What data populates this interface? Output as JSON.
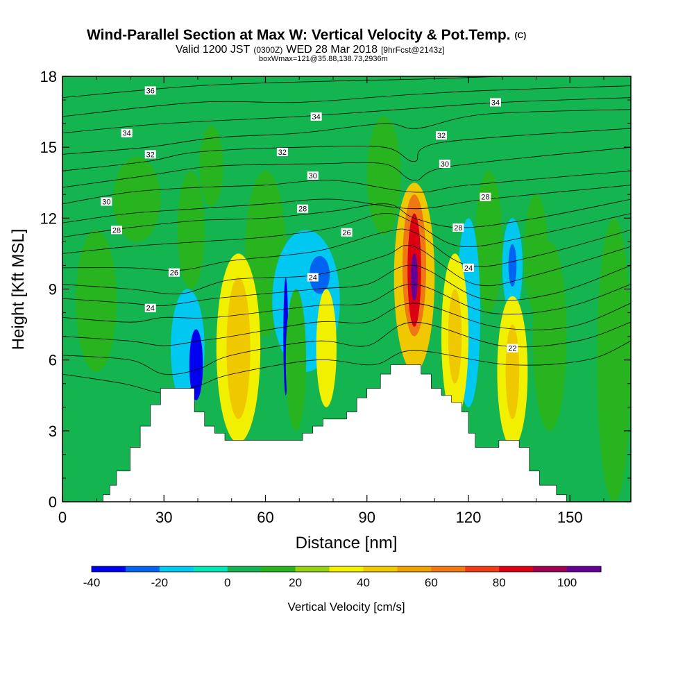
{
  "title": {
    "main": "Wind-Parallel Section at Max W: Vertical Velocity & Pot.Temp.",
    "copyright": "(C)",
    "valid_prefix": "Valid 1200 JST",
    "valid_utc": "(0300Z)",
    "valid_date": "WED 28 Mar 2018",
    "forecast": "[9hrFcst@2143z]",
    "boxwmax": "boxWmax=121@35.88,138.73,2936m"
  },
  "chart_data": {
    "type": "heatmap",
    "xlabel": "Distance [nm]",
    "ylabel": "Height [Kft MSL]",
    "xlim": [
      0,
      168
    ],
    "ylim": [
      0,
      18
    ],
    "x_ticks": [
      0,
      30,
      60,
      90,
      120,
      150
    ],
    "y_ticks": [
      0,
      3,
      6,
      9,
      12,
      15,
      18
    ],
    "grid": false,
    "background_value": 0,
    "colorbar": {
      "title": "Vertical Velocity [cm/s]",
      "placement": "bottom",
      "tick_labels": [
        "-40",
        "-20",
        "0",
        "20",
        "40",
        "60",
        "80",
        "100"
      ],
      "levels": [
        -40,
        -30,
        -20,
        -10,
        0,
        10,
        20,
        30,
        40,
        50,
        60,
        70,
        80,
        90,
        100,
        110
      ],
      "colors": [
        "#0000f0",
        "#0064f0",
        "#00c8f0",
        "#00e6b4",
        "#14b450",
        "#28b41e",
        "#96d214",
        "#f0f000",
        "#f0c800",
        "#f0a000",
        "#f07814",
        "#f03c14",
        "#dc0014",
        "#a00050",
        "#640096"
      ]
    },
    "terrain_kft": [
      [
        0,
        0
      ],
      [
        12,
        0
      ],
      [
        12,
        0.3
      ],
      [
        14,
        0.3
      ],
      [
        14,
        0.7
      ],
      [
        16,
        0.7
      ],
      [
        16,
        1.3
      ],
      [
        20,
        1.3
      ],
      [
        20,
        2.3
      ],
      [
        23,
        2.3
      ],
      [
        23,
        3.2
      ],
      [
        26,
        3.2
      ],
      [
        26,
        4.1
      ],
      [
        29,
        4.1
      ],
      [
        29,
        4.8
      ],
      [
        39,
        4.8
      ],
      [
        39,
        3.8
      ],
      [
        42,
        3.8
      ],
      [
        42,
        3.2
      ],
      [
        45,
        3.2
      ],
      [
        45,
        2.9
      ],
      [
        48,
        2.9
      ],
      [
        48,
        2.6
      ],
      [
        71,
        2.6
      ],
      [
        71,
        2.9
      ],
      [
        74,
        2.9
      ],
      [
        74,
        3.2
      ],
      [
        77,
        3.2
      ],
      [
        77,
        3.5
      ],
      [
        84,
        3.5
      ],
      [
        84,
        3.8
      ],
      [
        87,
        3.8
      ],
      [
        87,
        4.4
      ],
      [
        90,
        4.4
      ],
      [
        90,
        4.8
      ],
      [
        94,
        4.8
      ],
      [
        94,
        5.4
      ],
      [
        97,
        5.4
      ],
      [
        97,
        5.8
      ],
      [
        106,
        5.8
      ],
      [
        106,
        5.4
      ],
      [
        109,
        5.4
      ],
      [
        109,
        4.8
      ],
      [
        112,
        4.8
      ],
      [
        112,
        4.5
      ],
      [
        115,
        4.5
      ],
      [
        115,
        4.2
      ],
      [
        118,
        4.2
      ],
      [
        118,
        3.8
      ],
      [
        120,
        3.8
      ],
      [
        120,
        2.9
      ],
      [
        122,
        2.9
      ],
      [
        122,
        2.3
      ],
      [
        129,
        2.3
      ],
      [
        129,
        2.6
      ],
      [
        135,
        2.6
      ],
      [
        135,
        2.3
      ],
      [
        138,
        2.3
      ],
      [
        138,
        1.3
      ],
      [
        141,
        1.3
      ],
      [
        141,
        0.7
      ],
      [
        146,
        0.7
      ],
      [
        146,
        0.3
      ],
      [
        149,
        0.3
      ],
      [
        149,
        0
      ],
      [
        168,
        0
      ]
    ],
    "cells": [
      {
        "x": 10,
        "y": 8.5,
        "rx": 6,
        "ry": 3,
        "w": 10
      },
      {
        "x": 22,
        "y": 12.8,
        "rx": 7,
        "ry": 1.8,
        "w": 10
      },
      {
        "x": 38,
        "y": 11.5,
        "rx": 4,
        "ry": 2.5,
        "w": 10
      },
      {
        "x": 44,
        "y": 14.2,
        "rx": 3.5,
        "ry": 1.7,
        "w": 10
      },
      {
        "x": 60,
        "y": 10.5,
        "rx": 6,
        "ry": 3.5,
        "w": 10
      },
      {
        "x": 95,
        "y": 13.8,
        "rx": 5,
        "ry": 2.5,
        "w": 10
      },
      {
        "x": 126,
        "y": 11,
        "rx": 4,
        "ry": 3,
        "w": 10
      },
      {
        "x": 140,
        "y": 10.5,
        "rx": 3.5,
        "ry": 2.5,
        "w": 10
      },
      {
        "x": 144,
        "y": 7,
        "rx": 5,
        "ry": 4,
        "w": 10
      },
      {
        "x": 163,
        "y": 6,
        "rx": 5,
        "ry": 6,
        "w": 10
      },
      {
        "x": 37,
        "y": 6.5,
        "rx": 5,
        "ry": 2.5,
        "w": -20
      },
      {
        "x": 39.5,
        "y": 5.8,
        "rx": 2,
        "ry": 1.5,
        "w": -35
      },
      {
        "x": 72,
        "y": 8.5,
        "rx": 10,
        "ry": 3,
        "w": -15
      },
      {
        "x": 76,
        "y": 9.6,
        "rx": 3,
        "ry": 0.8,
        "w": -25
      },
      {
        "x": 66,
        "y": 7,
        "rx": 0.7,
        "ry": 2.5,
        "w": -35
      },
      {
        "x": 120,
        "y": 8,
        "rx": 3.5,
        "ry": 4,
        "w": -15
      },
      {
        "x": 133,
        "y": 10,
        "rx": 3,
        "ry": 2,
        "w": -15
      },
      {
        "x": 133,
        "y": 10,
        "rx": 1.2,
        "ry": 0.9,
        "w": -30
      },
      {
        "x": 52,
        "y": 6.5,
        "rx": 6.5,
        "ry": 4,
        "w": 30
      },
      {
        "x": 52,
        "y": 6.5,
        "rx": 3.5,
        "ry": 3,
        "w": 45
      },
      {
        "x": 69,
        "y": 6,
        "rx": 3,
        "ry": 3,
        "w": 15
      },
      {
        "x": 78,
        "y": 6.5,
        "rx": 3,
        "ry": 2.5,
        "w": 30
      },
      {
        "x": 104,
        "y": 9.5,
        "rx": 6,
        "ry": 4,
        "w": 40
      },
      {
        "x": 104,
        "y": 10,
        "rx": 3.5,
        "ry": 3,
        "w": 60
      },
      {
        "x": 104,
        "y": 9.8,
        "rx": 2,
        "ry": 2.4,
        "w": 85
      },
      {
        "x": 104,
        "y": 9.5,
        "rx": 1,
        "ry": 1,
        "w": 105
      },
      {
        "x": 116,
        "y": 7,
        "rx": 4,
        "ry": 3.5,
        "w": 30
      },
      {
        "x": 116,
        "y": 7,
        "rx": 2,
        "ry": 2,
        "w": 45
      },
      {
        "x": 133,
        "y": 5.5,
        "rx": 4.5,
        "ry": 3.2,
        "w": 30
      },
      {
        "x": 133,
        "y": 5.5,
        "rx": 2,
        "ry": 2,
        "w": 45
      }
    ],
    "isentropes": [
      {
        "label": "36",
        "points": [
          [
            0,
            17.1
          ],
          [
            40,
            17.6
          ],
          [
            80,
            17.8
          ],
          [
            110,
            17.9
          ],
          [
            168,
            18.2
          ]
        ]
      },
      {
        "label": "34",
        "points": [
          [
            0,
            16.3
          ],
          [
            40,
            16.9
          ],
          [
            70,
            16.9
          ],
          [
            100,
            17.2
          ],
          [
            125,
            17.4
          ],
          [
            168,
            17.6
          ]
        ]
      },
      {
        "label": "34",
        "points": [
          [
            0,
            15.6
          ],
          [
            30,
            16
          ],
          [
            70,
            16.3
          ],
          [
            100,
            16.6
          ],
          [
            130,
            16.9
          ],
          [
            168,
            17.1
          ]
        ]
      },
      {
        "label": "32",
        "points": [
          [
            0,
            14.7
          ],
          [
            25,
            15
          ],
          [
            45,
            15.4
          ],
          [
            70,
            15.6
          ],
          [
            95,
            16
          ],
          [
            105,
            15.8
          ],
          [
            125,
            16.4
          ],
          [
            168,
            16.6
          ]
        ]
      },
      {
        "label": "32",
        "points": [
          [
            0,
            14
          ],
          [
            25,
            14.4
          ],
          [
            40,
            14.8
          ],
          [
            70,
            15
          ],
          [
            95,
            15
          ],
          [
            104,
            14.4
          ],
          [
            112,
            15.2
          ],
          [
            168,
            15.8
          ]
        ]
      },
      {
        "label": "30",
        "points": [
          [
            0,
            13.3
          ],
          [
            25,
            13.8
          ],
          [
            45,
            14.2
          ],
          [
            75,
            14.3
          ],
          [
            95,
            14.3
          ],
          [
            104,
            13.6
          ],
          [
            115,
            14.2
          ],
          [
            168,
            15
          ]
        ]
      },
      {
        "label": "30",
        "points": [
          [
            0,
            12.6
          ],
          [
            20,
            13.1
          ],
          [
            40,
            13.3
          ],
          [
            60,
            13.4
          ],
          [
            80,
            13.6
          ],
          [
            104,
            13.1
          ],
          [
            120,
            13.4
          ],
          [
            168,
            14
          ]
        ]
      },
      {
        "label": "28",
        "points": [
          [
            0,
            11.8
          ],
          [
            20,
            12.2
          ],
          [
            40,
            12.4
          ],
          [
            60,
            12.6
          ],
          [
            80,
            12.8
          ],
          [
            104,
            12.4
          ],
          [
            125,
            12.8
          ],
          [
            168,
            13.4
          ]
        ]
      },
      {
        "label": "28",
        "points": [
          [
            0,
            11.2
          ],
          [
            20,
            11.6
          ],
          [
            40,
            11.9
          ],
          [
            60,
            12
          ],
          [
            80,
            12.3
          ],
          [
            96,
            12.6
          ],
          [
            104,
            12
          ],
          [
            118,
            11.6
          ],
          [
            140,
            12
          ],
          [
            168,
            12.8
          ]
        ]
      },
      {
        "label": "26",
        "points": [
          [
            0,
            10.5
          ],
          [
            20,
            10.8
          ],
          [
            40,
            11
          ],
          [
            60,
            11.2
          ],
          [
            80,
            11.6
          ],
          [
            95,
            12.2
          ],
          [
            104,
            11.8
          ],
          [
            118,
            10.8
          ],
          [
            140,
            11.3
          ],
          [
            168,
            12.2
          ]
        ]
      },
      {
        "label": "26",
        "points": [
          [
            0,
            9.9
          ],
          [
            20,
            9.9
          ],
          [
            35,
            9.8
          ],
          [
            50,
            10.2
          ],
          [
            75,
            10.6
          ],
          [
            95,
            11.4
          ],
          [
            104,
            11.4
          ],
          [
            120,
            10
          ],
          [
            140,
            10.4
          ],
          [
            168,
            11.5
          ]
        ]
      },
      {
        "label": "24",
        "points": [
          [
            0,
            9.2
          ],
          [
            20,
            9
          ],
          [
            35,
            8.8
          ],
          [
            50,
            9.4
          ],
          [
            75,
            9.6
          ],
          [
            95,
            10.4
          ],
          [
            104,
            10.8
          ],
          [
            122,
            9.2
          ],
          [
            140,
            9.6
          ],
          [
            168,
            10.8
          ]
        ]
      },
      {
        "label": "24",
        "points": [
          [
            0,
            8.6
          ],
          [
            20,
            8.4
          ],
          [
            30,
            8.3
          ],
          [
            45,
            8.6
          ],
          [
            75,
            9
          ],
          [
            90,
            9.2
          ],
          [
            104,
            10
          ],
          [
            124,
            8.6
          ],
          [
            145,
            8.8
          ],
          [
            168,
            10
          ]
        ]
      },
      {
        "label": "22",
        "points": [
          [
            0,
            7.8
          ],
          [
            20,
            7.6
          ],
          [
            30,
            7.8
          ],
          [
            45,
            7.8
          ],
          [
            75,
            8.3
          ],
          [
            90,
            8.4
          ],
          [
            104,
            9.2
          ],
          [
            126,
            8
          ],
          [
            148,
            8.2
          ],
          [
            168,
            9.2
          ]
        ]
      },
      {
        "label": "22",
        "points": [
          [
            0,
            7
          ],
          [
            20,
            6.8
          ],
          [
            30,
            6.6
          ],
          [
            40,
            6.8
          ],
          [
            50,
            7
          ],
          [
            75,
            7.6
          ],
          [
            90,
            7.6
          ],
          [
            104,
            8.4
          ],
          [
            128,
            7.4
          ],
          [
            150,
            7.4
          ],
          [
            168,
            8.4
          ]
        ]
      },
      {
        "label": "22",
        "points": [
          [
            0,
            6.2
          ],
          [
            20,
            6
          ],
          [
            30,
            5.4
          ],
          [
            40,
            5.6
          ],
          [
            50,
            6.2
          ],
          [
            75,
            6.8
          ],
          [
            90,
            6.6
          ],
          [
            104,
            7.6
          ],
          [
            130,
            6.6
          ],
          [
            152,
            6.8
          ],
          [
            168,
            7.6
          ]
        ]
      },
      {
        "label": "22",
        "points": [
          [
            0,
            5.4
          ],
          [
            18,
            5
          ],
          [
            30,
            4.6
          ],
          [
            40,
            4.9
          ],
          [
            50,
            5.4
          ],
          [
            75,
            6
          ],
          [
            92,
            5.8
          ],
          [
            104,
            6.4
          ],
          [
            132,
            5.8
          ],
          [
            155,
            6
          ],
          [
            168,
            6.8
          ]
        ]
      }
    ],
    "isentrope_labels": [
      {
        "text": "36",
        "x": 26,
        "y": 17.4
      },
      {
        "text": "34",
        "x": 19,
        "y": 15.6
      },
      {
        "text": "34",
        "x": 75,
        "y": 16.3
      },
      {
        "text": "34",
        "x": 128,
        "y": 16.9
      },
      {
        "text": "32",
        "x": 26,
        "y": 14.7
      },
      {
        "text": "32",
        "x": 65,
        "y": 14.8
      },
      {
        "text": "32",
        "x": 112,
        "y": 15.5
      },
      {
        "text": "30",
        "x": 13,
        "y": 12.7
      },
      {
        "text": "30",
        "x": 74,
        "y": 13.8
      },
      {
        "text": "30",
        "x": 113,
        "y": 14.3
      },
      {
        "text": "28",
        "x": 16,
        "y": 11.5
      },
      {
        "text": "28",
        "x": 71,
        "y": 12.4
      },
      {
        "text": "28",
        "x": 125,
        "y": 12.9
      },
      {
        "text": "28",
        "x": 117,
        "y": 11.6
      },
      {
        "text": "26",
        "x": 33,
        "y": 9.7
      },
      {
        "text": "26",
        "x": 84,
        "y": 11.4
      },
      {
        "text": "24",
        "x": 26,
        "y": 8.2
      },
      {
        "text": "24",
        "x": 74,
        "y": 9.5
      },
      {
        "text": "24",
        "x": 120,
        "y": 9.9
      },
      {
        "text": "22",
        "x": 133,
        "y": 6.5
      }
    ]
  }
}
